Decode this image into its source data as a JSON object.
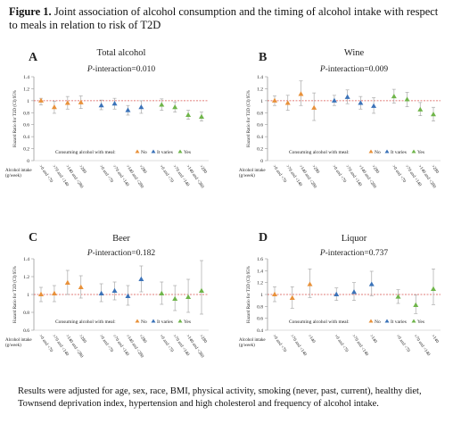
{
  "figure": {
    "label": "Figure 1.",
    "title": "Joint association of alcohol consumption and the timing of alcohol intake with respect to meals in relation to risk of T2D"
  },
  "footnote": "Results were adjusted for age, sex, race, BMI, physical activity, smoking (never, past, current), healthy diet, Townsend deprivation index, hypertension and high cholesterol and frequency of alcohol intake.",
  "colors": {
    "orange": "#e8913a",
    "blue": "#3b73b9",
    "green": "#6fb54a",
    "refline": "#d9534f",
    "errorbar": "#aaaaaa"
  },
  "chart_data": [
    {
      "panel": "A",
      "title": "Total alcohol",
      "p_label_italic": "P",
      "p_label_rest": "-interaction=0.010",
      "type": "scatter",
      "ylabel": "Hazard Ratio for T2D (CI) 95%",
      "xlabel": "Alcohol intake (g/week)",
      "ylim": [
        0,
        1.4
      ],
      "yticks": [
        0,
        0.2,
        0.4,
        0.6,
        0.8,
        1,
        1.2,
        1.4
      ],
      "reference_line": 1,
      "legend": {
        "prefix": "Consuming alcohol with meal:",
        "entries": [
          "No",
          "It varies",
          "Yes"
        ]
      },
      "categories": [
        ">0 and <70",
        ">70 and <140",
        ">140 and <280",
        ">280"
      ],
      "series": [
        {
          "name": "No",
          "color_key": "orange",
          "hr": [
            1.0,
            0.89,
            0.96,
            0.97
          ],
          "lower": [
            0.93,
            0.79,
            0.86,
            0.87
          ],
          "upper": [
            1.04,
            0.99,
            1.07,
            1.08
          ]
        },
        {
          "name": "It varies",
          "color_key": "blue",
          "hr": [
            0.92,
            0.95,
            0.84,
            0.89
          ],
          "lower": [
            0.85,
            0.86,
            0.76,
            0.79
          ],
          "upper": [
            1.01,
            1.04,
            0.92,
            1.0
          ]
        },
        {
          "name": "Yes",
          "color_key": "green",
          "hr": [
            0.93,
            0.89,
            0.76,
            0.73
          ],
          "lower": [
            0.84,
            0.81,
            0.69,
            0.66
          ],
          "upper": [
            1.03,
            0.98,
            0.84,
            0.81
          ]
        }
      ]
    },
    {
      "panel": "B",
      "title": "Wine",
      "p_label_italic": "P",
      "p_label_rest": "-interaction=0.009",
      "type": "scatter",
      "ylabel": "Hazard Ratio for T2D (CI) 95%",
      "xlabel": "Alcohol intake (g/week)",
      "ylim": [
        0,
        1.4
      ],
      "yticks": [
        0,
        0.2,
        0.4,
        0.6,
        0.8,
        1,
        1.2,
        1.4
      ],
      "reference_line": 1,
      "legend": {
        "prefix": "Consuming alcohol with meal:",
        "entries": [
          "No",
          "It varies",
          "Yes"
        ]
      },
      "categories": [
        ">0 and <70",
        ">70 and <140",
        ">140 and <280",
        ">280"
      ],
      "series": [
        {
          "name": "No",
          "color_key": "orange",
          "hr": [
            1.0,
            0.96,
            1.11,
            0.88
          ],
          "lower": [
            0.92,
            0.84,
            0.92,
            0.67
          ],
          "upper": [
            1.08,
            1.09,
            1.33,
            1.13
          ]
        },
        {
          "name": "It varies",
          "color_key": "blue",
          "hr": [
            1.0,
            1.06,
            0.96,
            0.91
          ],
          "lower": [
            0.92,
            0.95,
            0.86,
            0.79
          ],
          "upper": [
            1.09,
            1.18,
            1.07,
            1.05
          ]
        },
        {
          "name": "Yes",
          "color_key": "green",
          "hr": [
            1.07,
            1.02,
            0.85,
            0.77
          ],
          "lower": [
            0.96,
            0.9,
            0.75,
            0.66
          ],
          "upper": [
            1.19,
            1.14,
            0.97,
            0.89
          ]
        }
      ]
    },
    {
      "panel": "C",
      "title": "Beer",
      "p_label_italic": "P",
      "p_label_rest": "-interaction=0.182",
      "type": "scatter",
      "ylabel": "Hazard Ratio for T2D (CI) 95%",
      "xlabel": "Alcohol intake (g/week)",
      "ylim": [
        0.6,
        1.4
      ],
      "yticks": [
        0.6,
        0.8,
        1,
        1.2,
        1.4
      ],
      "reference_line": 1,
      "legend": {
        "prefix": "Consuming alcohol with meal:",
        "entries": [
          "No",
          "It varies",
          "Yes"
        ]
      },
      "categories": [
        ">0 and <70",
        ">70 and <140",
        ">140 and <280",
        ">280"
      ],
      "series": [
        {
          "name": "No",
          "color_key": "orange",
          "hr": [
            1.0,
            1.01,
            1.13,
            1.08
          ],
          "lower": [
            0.92,
            0.92,
            1.0,
            0.96
          ],
          "upper": [
            1.08,
            1.1,
            1.27,
            1.21
          ]
        },
        {
          "name": "It varies",
          "color_key": "blue",
          "hr": [
            1.01,
            1.04,
            0.98,
            1.17
          ],
          "lower": [
            0.92,
            0.94,
            0.88,
            1.03
          ],
          "upper": [
            1.12,
            1.14,
            1.1,
            1.32
          ]
        },
        {
          "name": "Yes",
          "color_key": "green",
          "hr": [
            1.01,
            0.95,
            0.97,
            1.04
          ],
          "lower": [
            0.89,
            0.82,
            0.8,
            0.78
          ],
          "upper": [
            1.14,
            1.1,
            1.17,
            1.38
          ]
        }
      ]
    },
    {
      "panel": "D",
      "title": "Liquor",
      "p_label_italic": "P",
      "p_label_rest": "-interaction=0.737",
      "type": "scatter",
      "ylabel": "Hazard Ratio for T2D (CI) 95%",
      "xlabel": "Alcohol intake (g/week)",
      "ylim": [
        0.4,
        1.6
      ],
      "yticks": [
        0.4,
        0.6,
        0.8,
        1,
        1.2,
        1.4,
        1.6
      ],
      "reference_line": 1,
      "legend": {
        "prefix": "Consuming alcohol with meal:",
        "entries": [
          "No",
          "It varies",
          "Yes"
        ]
      },
      "categories": [
        ">0 and <70",
        ">70 and <140",
        ">140"
      ],
      "series": [
        {
          "name": "No",
          "color_key": "orange",
          "hr": [
            1.0,
            0.94,
            1.17
          ],
          "lower": [
            0.88,
            0.77,
            0.95
          ],
          "upper": [
            1.13,
            1.13,
            1.43
          ]
        },
        {
          "name": "It varies",
          "color_key": "blue",
          "hr": [
            1.0,
            1.04,
            1.17
          ],
          "lower": [
            0.9,
            0.9,
            0.98
          ],
          "upper": [
            1.11,
            1.2,
            1.39
          ]
        },
        {
          "name": "Yes",
          "color_key": "green",
          "hr": [
            0.96,
            0.82,
            1.09
          ],
          "lower": [
            0.85,
            0.68,
            0.83
          ],
          "upper": [
            1.08,
            0.99,
            1.43
          ]
        }
      ]
    }
  ]
}
